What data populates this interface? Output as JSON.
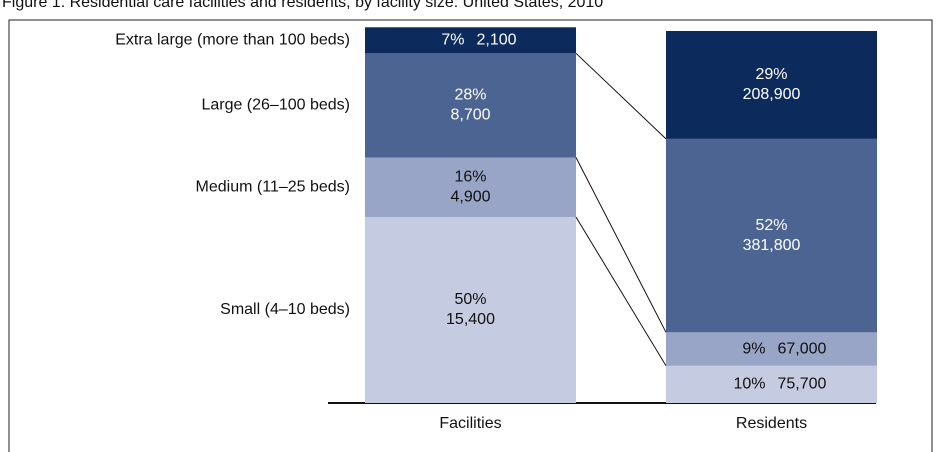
{
  "chart_data": {
    "type": "stacked_bar_100",
    "title": "Figure 1. Residential care facilities and residents, by facility size: United States, 2010",
    "categories": [
      "Facilities",
      "Residents"
    ],
    "ylim": [
      0,
      100
    ],
    "series": [
      {
        "name": "Small (4–10 beds)",
        "color": "#c5cbe0",
        "values": [
          50,
          10
        ],
        "value_labels": [
          "50%",
          "10%"
        ],
        "counts": [
          15400,
          75700
        ],
        "count_labels": [
          "15,400",
          "75,700"
        ]
      },
      {
        "name": "Medium (11–25 beds)",
        "color": "#98a5c6",
        "values": [
          16,
          9
        ],
        "value_labels": [
          "16%",
          "9%"
        ],
        "counts": [
          4900,
          67000
        ],
        "count_labels": [
          "4,900",
          "67,000"
        ]
      },
      {
        "name": "Large (26–100 beds)",
        "color": "#4b6491",
        "values": [
          28,
          52
        ],
        "value_labels": [
          "28%",
          "52%"
        ],
        "counts": [
          8700,
          381800
        ],
        "count_labels": [
          "8,700",
          "381,800"
        ]
      },
      {
        "name": "Extra large (more than 100 beds)",
        "color": "#0c2a5c",
        "values": [
          7,
          29
        ],
        "value_labels": [
          "7%",
          "29%"
        ],
        "counts": [
          2100,
          208900
        ],
        "count_labels": [
          "2,100",
          "208,900"
        ]
      }
    ]
  }
}
